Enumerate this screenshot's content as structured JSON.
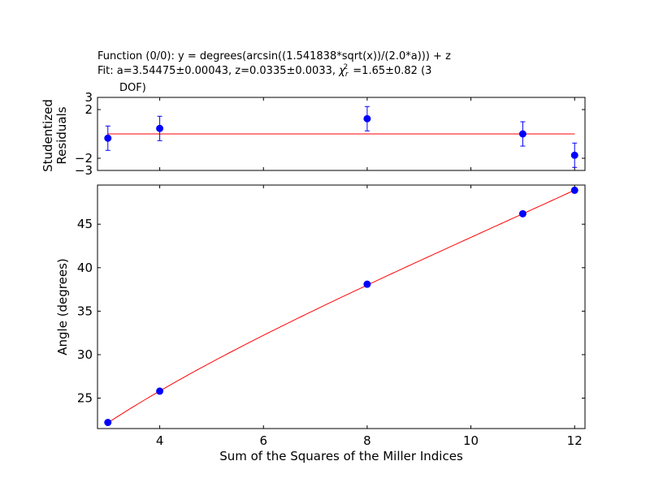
{
  "title": {
    "line1": "Function (0/0): y =  degrees(arcsin((1.541838*sqrt(x))/(2.0*a))) + z",
    "line2_prefix": "Fit: a=3.54475±0.00043, z=0.0335±0.0033, ",
    "chi_symbol": "χ",
    "chi_sub": "r",
    "chi_sup": "2",
    "line2_suffix": "=1.65±0.82 (3",
    "line3": "DOF)"
  },
  "colors": {
    "points": "#0000ff",
    "fit": "#ff0000",
    "axes": "#000000"
  },
  "chart_data": [
    {
      "type": "scatter",
      "panel": "residuals",
      "ylabel_line1": "Studentized",
      "ylabel_line2": "Residuals",
      "xlim": [
        2.8,
        12.2
      ],
      "ylim": [
        -3,
        3
      ],
      "yticks": [
        -3,
        -2,
        2,
        3
      ],
      "ytick_labels": [
        "−3",
        "−2",
        "2",
        "3"
      ],
      "reference_line": 0,
      "series": [
        {
          "x": [
            3,
            4,
            8,
            11,
            12
          ],
          "y": [
            -0.35,
            0.45,
            1.25,
            0.0,
            -1.75
          ],
          "yerr": [
            1,
            1,
            1,
            1,
            1
          ]
        }
      ]
    },
    {
      "type": "scatter",
      "panel": "main",
      "xlabel": "Sum of the Squares of the Miller Indices",
      "ylabel": "Angle (degrees)",
      "xlim": [
        2.8,
        12.2
      ],
      "ylim": [
        21.5,
        49.5
      ],
      "xticks": [
        4,
        6,
        8,
        10,
        12
      ],
      "xtick_labels": [
        "4",
        "6",
        "8",
        "10",
        "12"
      ],
      "yticks": [
        25,
        30,
        35,
        40,
        45
      ],
      "ytick_labels": [
        "25",
        "30",
        "35",
        "40",
        "45"
      ],
      "series": [
        {
          "x": [
            3,
            4,
            8,
            11,
            12
          ],
          "y": [
            22.2,
            25.8,
            38.1,
            46.2,
            48.9
          ]
        }
      ],
      "fit": {
        "a": 3.54475,
        "z": 0.0335,
        "x_range": [
          3,
          12
        ]
      }
    }
  ]
}
